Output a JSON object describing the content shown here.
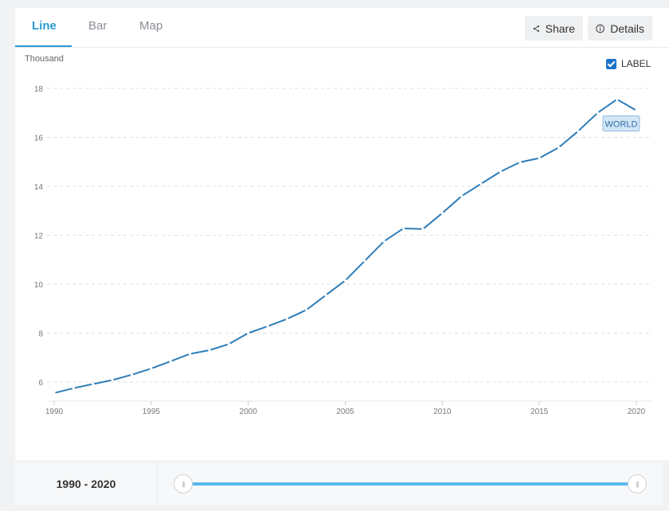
{
  "tabs": [
    {
      "label": "Line",
      "active": true
    },
    {
      "label": "Bar",
      "active": false
    },
    {
      "label": "Map",
      "active": false
    }
  ],
  "buttons": {
    "share": "Share",
    "details": "Details"
  },
  "icons": {
    "share": "share-icon",
    "details": "info-icon",
    "checkbox": "checkbox-checked-icon"
  },
  "label_toggle": {
    "text": "LABEL",
    "checked": true
  },
  "footer": {
    "range_text": "1990 - 2020",
    "slider_start": 1990,
    "slider_end": 2020
  },
  "colors": {
    "accent": "#2b9ad3",
    "line": "#2e7db8",
    "slider": "#5ab8ee"
  },
  "chart_data": {
    "type": "line",
    "ylabel": "Thousand",
    "xlim": [
      1990,
      2020
    ],
    "ylim": [
      5,
      18.5
    ],
    "x_ticks": [
      1990,
      1995,
      2000,
      2005,
      2010,
      2015,
      2020
    ],
    "y_ticks": [
      6,
      8,
      10,
      12,
      14,
      16,
      18
    ],
    "grid": "horizontal dashed",
    "series": [
      {
        "name": "WORLD",
        "x": [
          1990,
          1991,
          1992,
          1993,
          1994,
          1995,
          1996,
          1997,
          1998,
          1999,
          2000,
          2001,
          2002,
          2003,
          2004,
          2005,
          2006,
          2007,
          2008,
          2009,
          2010,
          2011,
          2012,
          2013,
          2014,
          2015,
          2016,
          2017,
          2018,
          2019,
          2020
        ],
        "y": [
          5.55,
          5.75,
          5.92,
          6.08,
          6.3,
          6.55,
          6.85,
          7.15,
          7.3,
          7.55,
          8.0,
          8.28,
          8.58,
          8.95,
          9.55,
          10.15,
          10.95,
          11.75,
          12.28,
          12.25,
          12.9,
          13.6,
          14.1,
          14.6,
          14.98,
          15.15,
          15.58,
          16.25,
          17.0,
          17.55,
          17.1
        ]
      }
    ]
  }
}
